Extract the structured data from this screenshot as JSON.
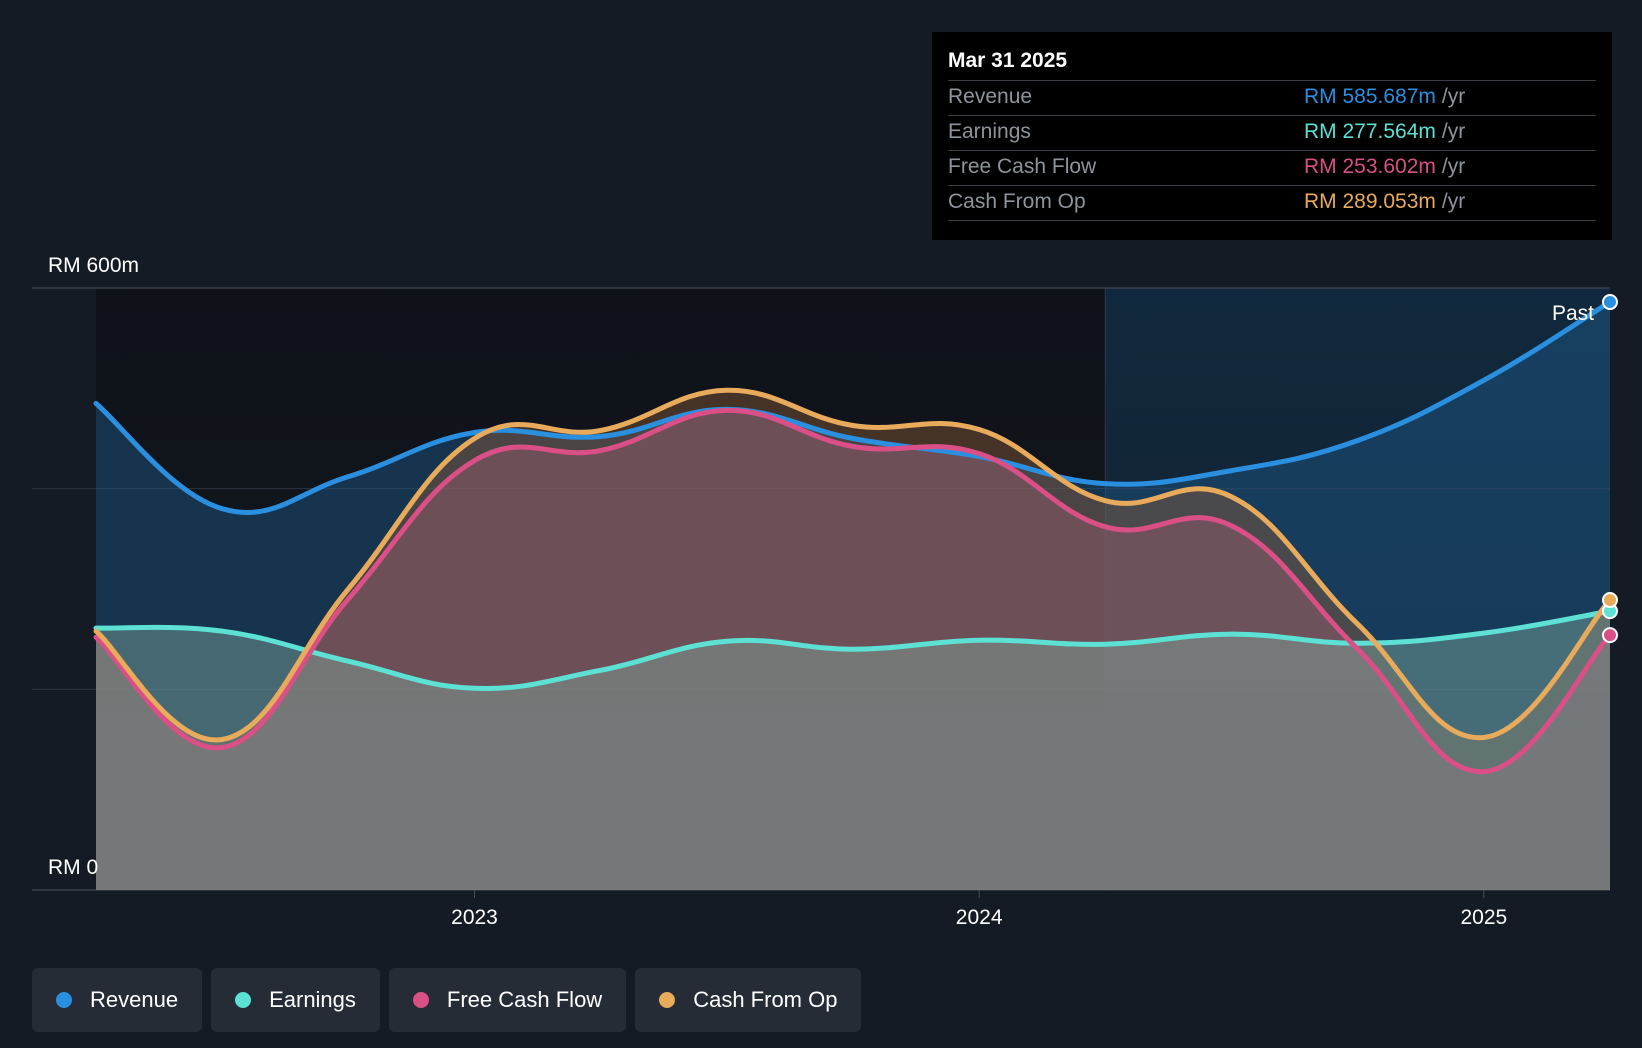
{
  "tooltip": {
    "date": "Mar 31 2025",
    "rows": [
      {
        "label": "Revenue",
        "value": "RM 585.687m",
        "unit": "/yr",
        "color": "#2b8fe0"
      },
      {
        "label": "Earnings",
        "value": "RM 277.564m",
        "unit": "/yr",
        "color": "#5ce1d4"
      },
      {
        "label": "Free Cash Flow",
        "value": "RM 253.602m",
        "unit": "/yr",
        "color": "#d94f86"
      },
      {
        "label": "Cash From Op",
        "value": "RM 289.053m",
        "unit": "/yr",
        "color": "#e8aa5b"
      }
    ]
  },
  "past_label": "Past",
  "legend": [
    {
      "label": "Revenue",
      "color": "#2b8fe0"
    },
    {
      "label": "Earnings",
      "color": "#5ce1d4"
    },
    {
      "label": "Free Cash Flow",
      "color": "#d94f86"
    },
    {
      "label": "Cash From Op",
      "color": "#e8aa5b"
    }
  ],
  "chart_data": {
    "type": "area",
    "currency_unit": "RM m",
    "y_tick_labels": [
      "RM 600m",
      "RM 0"
    ],
    "ylim": [
      0,
      600
    ],
    "x_tick_labels": [
      "2023",
      "2024",
      "2025"
    ],
    "x_ticks": [
      2023.0,
      2024.0,
      2025.0
    ],
    "xlim": [
      2022.25,
      2025.25
    ],
    "past_divider_x": 2024.25,
    "grid": true,
    "series": [
      {
        "name": "Revenue",
        "color": "#2b8fe0",
        "x": [
          2022.25,
          2022.5,
          2022.75,
          2023.0,
          2023.25,
          2023.5,
          2023.75,
          2024.0,
          2024.25,
          2024.5,
          2024.75,
          2025.0,
          2025.25
        ],
        "values": [
          485,
          380,
          412,
          456,
          452,
          479,
          450,
          432,
          405,
          418,
          448,
          508,
          586
        ]
      },
      {
        "name": "Earnings",
        "color": "#5ce1d4",
        "x": [
          2022.25,
          2022.5,
          2022.75,
          2023.0,
          2023.25,
          2023.5,
          2023.75,
          2024.0,
          2024.25,
          2024.5,
          2024.75,
          2025.0,
          2025.25
        ],
        "values": [
          261,
          258,
          228,
          201,
          219,
          248,
          240,
          249,
          245,
          255,
          246,
          256,
          278
        ]
      },
      {
        "name": "Free Cash Flow",
        "color": "#d94f86",
        "x": [
          2022.25,
          2022.5,
          2022.75,
          2023.0,
          2023.25,
          2023.5,
          2023.75,
          2024.0,
          2024.25,
          2024.5,
          2024.75,
          2025.0,
          2025.25
        ],
        "values": [
          252,
          142,
          290,
          428,
          438,
          478,
          442,
          435,
          362,
          363,
          240,
          118,
          254
        ]
      },
      {
        "name": "Cash From Op",
        "color": "#e8aa5b",
        "x": [
          2022.25,
          2022.5,
          2022.75,
          2023.0,
          2023.25,
          2023.5,
          2023.75,
          2024.0,
          2024.25,
          2024.5,
          2024.75,
          2025.0,
          2025.25
        ],
        "values": [
          258,
          150,
          300,
          450,
          458,
          498,
          463,
          459,
          388,
          392,
          265,
          152,
          289
        ]
      }
    ]
  }
}
